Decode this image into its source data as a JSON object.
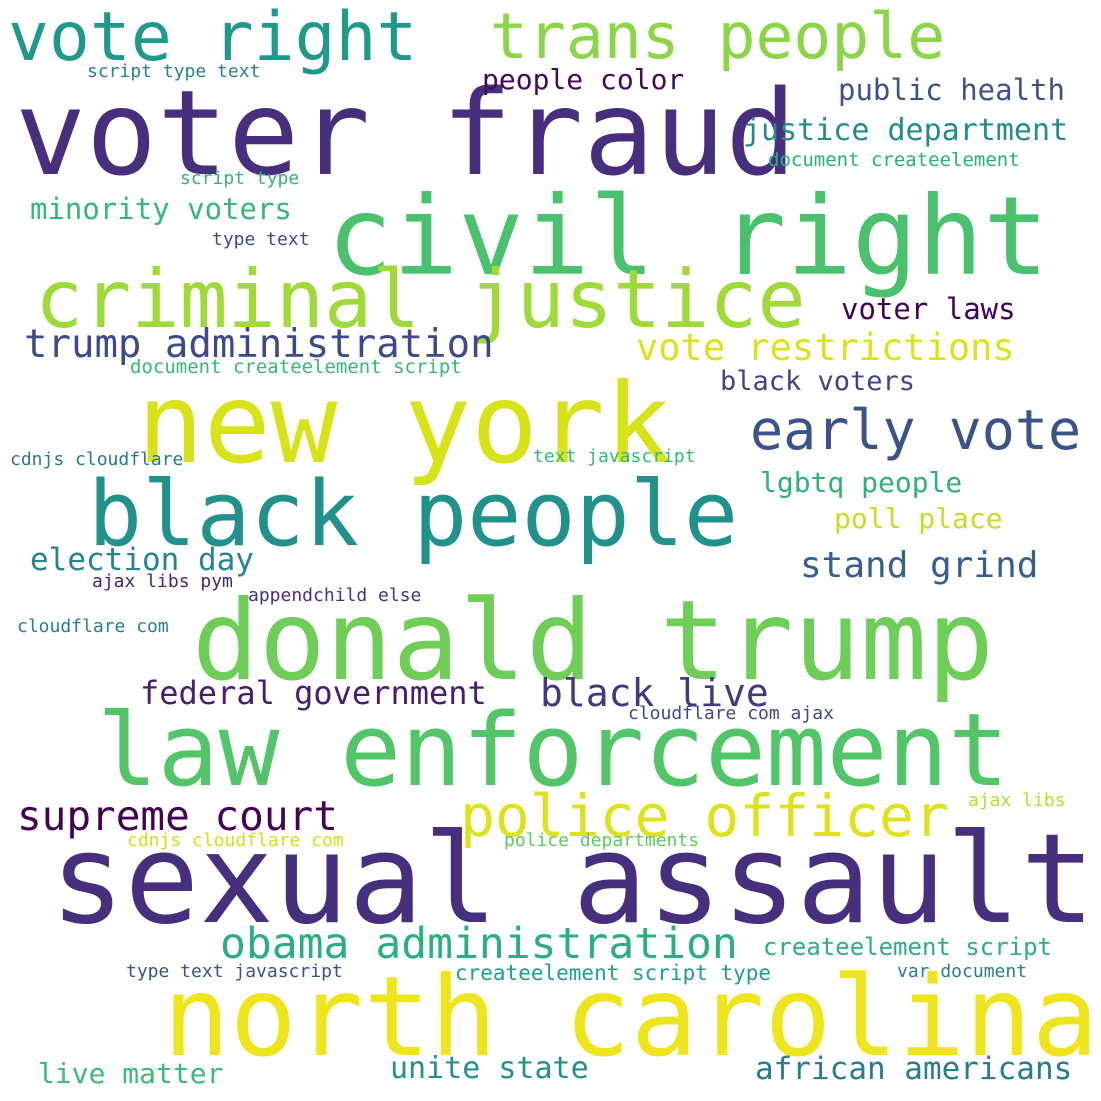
{
  "words": [
    {
      "text": "sexual assault",
      "color": "#46307e"
    },
    {
      "text": "voter fraud",
      "color": "#472f7d"
    },
    {
      "text": "north carolina",
      "color": "#efe51c"
    },
    {
      "text": "new york",
      "color": "#d8e219"
    },
    {
      "text": "donald trump",
      "color": "#6ece58"
    },
    {
      "text": "civil right",
      "color": "#4ac16d"
    },
    {
      "text": "law enforcement",
      "color": "#52c569"
    },
    {
      "text": "black people",
      "color": "#21918c"
    },
    {
      "text": "criminal justice",
      "color": "#a0da39"
    },
    {
      "text": "vote right",
      "color": "#1f9a8a"
    },
    {
      "text": "trans people",
      "color": "#8bd646"
    },
    {
      "text": "police officer",
      "color": "#dde318"
    },
    {
      "text": "obama administration",
      "color": "#2ab07f"
    },
    {
      "text": "early vote",
      "color": "#3b528b"
    },
    {
      "text": "trump administration",
      "color": "#3e4989"
    },
    {
      "text": "supreme court",
      "color": "#440154"
    },
    {
      "text": "black live",
      "color": "#453781"
    },
    {
      "text": "federal government",
      "color": "#481c6e"
    },
    {
      "text": "vote restrictions",
      "color": "#dde318"
    },
    {
      "text": "stand grind",
      "color": "#355f8d"
    },
    {
      "text": "election day",
      "color": "#24868e"
    },
    {
      "text": "justice department",
      "color": "#228c8d"
    },
    {
      "text": "minority voters",
      "color": "#35b779"
    },
    {
      "text": "african americans",
      "color": "#287c8e"
    },
    {
      "text": "public health",
      "color": "#3b528b"
    },
    {
      "text": "people color",
      "color": "#46085c"
    },
    {
      "text": "lgbtq people",
      "color": "#2db27d"
    },
    {
      "text": "poll place",
      "color": "#c2df23"
    },
    {
      "text": "unite state",
      "color": "#21918c"
    },
    {
      "text": "live matter",
      "color": "#3bbb75"
    },
    {
      "text": "voter laws",
      "color": "#440154"
    },
    {
      "text": "black voters",
      "color": "#414487"
    },
    {
      "text": "createelement script",
      "color": "#2ab07f"
    },
    {
      "text": "createelement script type",
      "color": "#1fa187"
    },
    {
      "text": "document createelement script",
      "color": "#35b779"
    },
    {
      "text": "document createelement",
      "color": "#29af7f"
    },
    {
      "text": "cdnjs cloudflare",
      "color": "#2a788e"
    },
    {
      "text": "text javascript",
      "color": "#35b779"
    },
    {
      "text": "script type text",
      "color": "#26828e"
    },
    {
      "text": "script type",
      "color": "#2fb47c"
    },
    {
      "text": "type text",
      "color": "#3e4a89"
    },
    {
      "text": "cloudflare com",
      "color": "#277f8e"
    },
    {
      "text": "appendchild else",
      "color": "#46337f"
    },
    {
      "text": "ajax libs pym",
      "color": "#482475"
    },
    {
      "text": "cloudflare com ajax",
      "color": "#3e4989"
    },
    {
      "text": "cdnjs cloudflare com",
      "color": "#d0e11c"
    },
    {
      "text": "police departments",
      "color": "#5ec962"
    },
    {
      "text": "ajax libs",
      "color": "#b5de2b"
    },
    {
      "text": "type text javascript",
      "color": "#3b528b"
    },
    {
      "text": "var document",
      "color": "#287d8e"
    }
  ]
}
